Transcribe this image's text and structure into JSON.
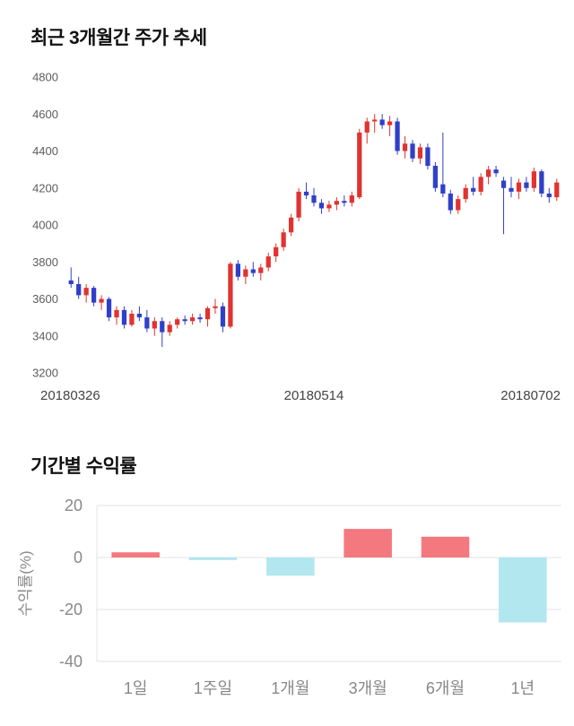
{
  "chart_data": [
    {
      "type": "candlestick",
      "title": "최근 3개월간 주가 추세",
      "ylabel": "",
      "xlabel": "",
      "ylim": [
        3200,
        4800
      ],
      "yticks": [
        3200,
        3400,
        3600,
        3800,
        4000,
        4200,
        4400,
        4600,
        4800
      ],
      "xticks": [
        "20180326",
        "20180514",
        "20180702"
      ],
      "grid": false,
      "colors": {
        "up": "#e03330",
        "down": "#2f40c8"
      },
      "candles_ohlc": [
        [
          3700,
          3770,
          3660,
          3680
        ],
        [
          3680,
          3720,
          3600,
          3620
        ],
        [
          3620,
          3680,
          3580,
          3660
        ],
        [
          3660,
          3670,
          3560,
          3580
        ],
        [
          3580,
          3620,
          3540,
          3600
        ],
        [
          3600,
          3610,
          3480,
          3500
        ],
        [
          3500,
          3560,
          3460,
          3540
        ],
        [
          3540,
          3560,
          3440,
          3460
        ],
        [
          3460,
          3540,
          3450,
          3520
        ],
        [
          3520,
          3560,
          3480,
          3500
        ],
        [
          3500,
          3540,
          3420,
          3440
        ],
        [
          3440,
          3500,
          3400,
          3480
        ],
        [
          3480,
          3500,
          3340,
          3420
        ],
        [
          3420,
          3480,
          3400,
          3460
        ],
        [
          3460,
          3500,
          3440,
          3490
        ],
        [
          3490,
          3510,
          3460,
          3480
        ],
        [
          3480,
          3520,
          3460,
          3500
        ],
        [
          3500,
          3520,
          3470,
          3490
        ],
        [
          3490,
          3560,
          3450,
          3550
        ],
        [
          3550,
          3600,
          3520,
          3560
        ],
        [
          3560,
          3580,
          3420,
          3450
        ],
        [
          3450,
          3800,
          3440,
          3790
        ],
        [
          3790,
          3810,
          3700,
          3720
        ],
        [
          3720,
          3780,
          3680,
          3760
        ],
        [
          3760,
          3800,
          3720,
          3740
        ],
        [
          3740,
          3790,
          3700,
          3770
        ],
        [
          3770,
          3850,
          3750,
          3830
        ],
        [
          3830,
          3900,
          3800,
          3880
        ],
        [
          3880,
          3980,
          3860,
          3960
        ],
        [
          3960,
          4060,
          3940,
          4040
        ],
        [
          4040,
          4200,
          4020,
          4180
        ],
        [
          4180,
          4230,
          4140,
          4160
        ],
        [
          4160,
          4200,
          4100,
          4120
        ],
        [
          4120,
          4140,
          4060,
          4090
        ],
        [
          4090,
          4130,
          4070,
          4110
        ],
        [
          4110,
          4150,
          4080,
          4130
        ],
        [
          4130,
          4160,
          4100,
          4120
        ],
        [
          4120,
          4180,
          4100,
          4160
        ],
        [
          4150,
          4520,
          4140,
          4500
        ],
        [
          4500,
          4580,
          4440,
          4560
        ],
        [
          4560,
          4600,
          4500,
          4570
        ],
        [
          4570,
          4600,
          4520,
          4540
        ],
        [
          4540,
          4590,
          4480,
          4560
        ],
        [
          4560,
          4580,
          4380,
          4400
        ],
        [
          4400,
          4480,
          4360,
          4440
        ],
        [
          4440,
          4460,
          4340,
          4360
        ],
        [
          4360,
          4440,
          4330,
          4420
        ],
        [
          4420,
          4440,
          4300,
          4320
        ],
        [
          4320,
          4340,
          4180,
          4200
        ],
        [
          4220,
          4500,
          4150,
          4170
        ],
        [
          4170,
          4190,
          4060,
          4080
        ],
        [
          4080,
          4160,
          4060,
          4140
        ],
        [
          4140,
          4220,
          4120,
          4200
        ],
        [
          4200,
          4260,
          4160,
          4180
        ],
        [
          4180,
          4280,
          4160,
          4260
        ],
        [
          4260,
          4320,
          4220,
          4300
        ],
        [
          4300,
          4320,
          4260,
          4280
        ],
        [
          4240,
          4260,
          3950,
          4200
        ],
        [
          4200,
          4260,
          4150,
          4180
        ],
        [
          4180,
          4250,
          4140,
          4230
        ],
        [
          4230,
          4260,
          4180,
          4200
        ],
        [
          4200,
          4310,
          4180,
          4290
        ],
        [
          4290,
          4300,
          4150,
          4170
        ],
        [
          4170,
          4200,
          4120,
          4150
        ],
        [
          4150,
          4250,
          4130,
          4230
        ]
      ]
    },
    {
      "type": "bar",
      "title": "기간별 수익률",
      "categories": [
        "1일",
        "1주일",
        "1개월",
        "3개월",
        "6개월",
        "1년"
      ],
      "values": [
        2,
        -1,
        -7,
        11,
        8,
        -25
      ],
      "ylabel": "수익률(%)",
      "xlabel": "",
      "ylim": [
        -40,
        20
      ],
      "yticks": [
        20,
        0,
        -20,
        -40
      ],
      "grid": true,
      "legend": false,
      "colors": {
        "positive": "#f3797e",
        "negative": "#b2e7f0"
      }
    }
  ]
}
